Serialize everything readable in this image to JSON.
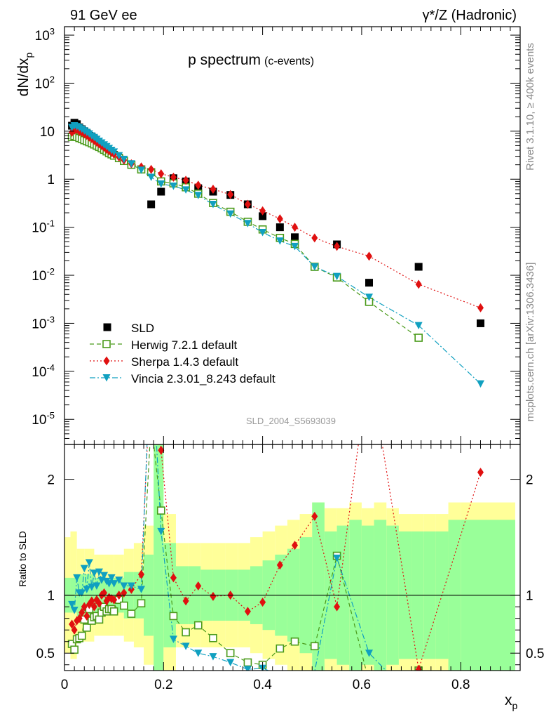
{
  "header": {
    "left_label": "91 GeV ee",
    "right_label": "γ*/Z (Hadronic)"
  },
  "side_labels": {
    "rivet": "Rivet 3.1.10, ≥ 400k events",
    "mcplots": "mcplots.cern.ch [arXiv:1306.3436]"
  },
  "chart_data": {
    "type": "scatter",
    "title": "p spectrum",
    "subtitle": "(c-events)",
    "analysis_id": "SLD_2004_S5693039",
    "xlabel": "x_p",
    "ylabel": "dN/dx_p",
    "ratio_ylabel": "Ratio to SLD",
    "xlim": [
      0,
      0.92
    ],
    "ylim_log": [
      3e-06,
      1500
    ],
    "ratio_ylim": [
      0.35,
      2.3
    ],
    "log_y": true,
    "legend_position": "bottom-left",
    "x_ticks": [
      "0",
      "0.2",
      "0.4",
      "0.6",
      "0.8"
    ],
    "y_ticks": [
      "10^-5",
      "10^-4",
      "10^-3",
      "10^-2",
      "10^-1",
      "1",
      "10",
      "10^2",
      "10^3"
    ],
    "ratio_ticks": [
      "0.5",
      "1",
      "2"
    ],
    "data": {
      "name": "SLD",
      "x": [
        0.015,
        0.02,
        0.025,
        0.03,
        0.035,
        0.04,
        0.045,
        0.05,
        0.055,
        0.06,
        0.065,
        0.07,
        0.075,
        0.08,
        0.085,
        0.09,
        0.095,
        0.1,
        0.11,
        0.12,
        0.135,
        0.155,
        0.175,
        0.195,
        0.22,
        0.245,
        0.27,
        0.3,
        0.335,
        0.37,
        0.4,
        0.435,
        0.465,
        0.505,
        0.55,
        0.615,
        0.715,
        0.84
      ],
      "y": [
        13,
        15,
        14,
        12,
        11,
        10,
        9,
        8,
        7.5,
        6.8,
        6,
        5.5,
        5,
        4.5,
        4.1,
        3.8,
        3.5,
        3.2,
        2.8,
        2.4,
        2.0,
        1.6,
        0.3,
        0.55,
        1.05,
        0.9,
        0.65,
        0.55,
        0.47,
        0.3,
        0.17,
        0.1,
        0.062,
        0.015,
        0.044,
        0.007,
        0.015,
        0.001
      ],
      "ratio_band_x": [
        0,
        0.012,
        0.025,
        0.04,
        0.06,
        0.08,
        0.1,
        0.12,
        0.14,
        0.16,
        0.18,
        0.2,
        0.225,
        0.25,
        0.275,
        0.3,
        0.325,
        0.35,
        0.375,
        0.4,
        0.425,
        0.45,
        0.475,
        0.5,
        0.525,
        0.55,
        0.575,
        0.6,
        0.625,
        0.65,
        0.675,
        0.7,
        0.725,
        0.75,
        0.775,
        0.8,
        0.91
      ],
      "ratio_band_inner": [
        0.15,
        0.15,
        0.18,
        0.18,
        0.15,
        0.15,
        0.15,
        0.2,
        0.2,
        0.35,
        1.5,
        0.45,
        0.25,
        0.25,
        0.22,
        0.22,
        0.22,
        0.22,
        0.25,
        0.3,
        0.35,
        0.4,
        0.5,
        0.8,
        0.55,
        0.6,
        0.65,
        0.6,
        0.65,
        0.6,
        0.55,
        0.55,
        0.55,
        0.55,
        0.65,
        0.65,
        0.65
      ],
      "ratio_band_outer": [
        0.5,
        0.55,
        0.4,
        0.4,
        0.35,
        0.35,
        0.35,
        0.4,
        0.45,
        0.6,
        1.5,
        0.7,
        0.45,
        0.45,
        0.45,
        0.45,
        0.45,
        0.45,
        0.5,
        0.55,
        0.6,
        0.65,
        0.7,
        0.8,
        0.75,
        0.75,
        0.8,
        0.75,
        0.8,
        0.75,
        0.7,
        0.7,
        0.7,
        0.7,
        0.8,
        0.8,
        0.8
      ]
    },
    "series": [
      {
        "name": "Herwig 7.2.1 default",
        "color": "#4a9a1a",
        "marker": "open-square",
        "dash": "6,4",
        "x": [
          0.015,
          0.02,
          0.025,
          0.03,
          0.035,
          0.04,
          0.045,
          0.05,
          0.055,
          0.06,
          0.065,
          0.07,
          0.075,
          0.08,
          0.085,
          0.09,
          0.095,
          0.1,
          0.11,
          0.12,
          0.135,
          0.155,
          0.175,
          0.195,
          0.22,
          0.245,
          0.27,
          0.3,
          0.335,
          0.37,
          0.4,
          0.435,
          0.465,
          0.505,
          0.55,
          0.615,
          0.715
        ],
        "y": [
          7.6,
          7.9,
          7.6,
          7.2,
          6.9,
          6.5,
          6.2,
          5.9,
          5.6,
          5.3,
          5.0,
          4.7,
          4.4,
          4.1,
          3.8,
          3.5,
          3.3,
          3.1,
          2.75,
          2.4,
          2.0,
          1.6,
          1.4,
          0.9,
          0.82,
          0.68,
          0.5,
          0.32,
          0.21,
          0.13,
          0.09,
          0.06,
          0.045,
          0.015,
          0.009,
          0.0028,
          0.0005
        ],
        "ratio": [
          0.58,
          0.53,
          0.62,
          0.63,
          0.65,
          0.79,
          0.72,
          0.88,
          0.78,
          0.81,
          0.82,
          0.79,
          0.85,
          0.9,
          0.86,
          0.88,
          0.88,
          0.86,
          0.96,
          0.91,
          0.84,
          0.93,
          2.5,
          1.73,
          0.82,
          0.68,
          0.74,
          0.63,
          0.5,
          0.42,
          0.4,
          0.54,
          0.6,
          0.56,
          1.34,
          0.25,
          0.35
        ]
      },
      {
        "name": "Sherpa 1.4.3 default",
        "color": "#e01010",
        "marker": "filled-diamond",
        "dash": "2,3",
        "x": [
          0.015,
          0.02,
          0.025,
          0.03,
          0.035,
          0.04,
          0.045,
          0.05,
          0.055,
          0.06,
          0.065,
          0.07,
          0.075,
          0.08,
          0.085,
          0.09,
          0.095,
          0.1,
          0.11,
          0.12,
          0.135,
          0.155,
          0.175,
          0.195,
          0.22,
          0.245,
          0.27,
          0.3,
          0.335,
          0.37,
          0.4,
          0.435,
          0.465,
          0.505,
          0.55,
          0.615,
          0.715,
          0.84
        ],
        "y": [
          9.5,
          10.5,
          10.8,
          10.0,
          9.5,
          8.8,
          8.2,
          7.5,
          7.0,
          6.4,
          5.9,
          5.4,
          5.0,
          4.6,
          4.2,
          3.9,
          3.6,
          3.3,
          2.9,
          2.5,
          2.1,
          1.8,
          1.6,
          1.3,
          1.1,
          0.95,
          0.75,
          0.62,
          0.48,
          0.3,
          0.22,
          0.15,
          0.1,
          0.06,
          0.04,
          0.025,
          0.0065,
          0.0021
        ],
        "ratio": [
          0.75,
          0.7,
          0.78,
          0.8,
          0.85,
          0.9,
          0.82,
          0.92,
          0.95,
          0.9,
          0.96,
          0.93,
          1.0,
          1.02,
          0.95,
          0.98,
          0.97,
          0.96,
          1.0,
          1.02,
          1.05,
          1.18,
          3.0,
          2.25,
          1.15,
          0.95,
          1.08,
          0.99,
          1.0,
          0.86,
          0.94,
          1.26,
          1.43,
          1.68,
          0.9,
          3.0,
          0.36,
          2.06
        ]
      },
      {
        "name": "Vincia 2.3.01_8.243 default",
        "color": "#10a0c0",
        "marker": "filled-triangle-down",
        "dash": "8,3,2,3",
        "x": [
          0.015,
          0.02,
          0.025,
          0.03,
          0.035,
          0.04,
          0.045,
          0.05,
          0.055,
          0.06,
          0.065,
          0.07,
          0.075,
          0.08,
          0.085,
          0.09,
          0.095,
          0.1,
          0.11,
          0.12,
          0.135,
          0.155,
          0.175,
          0.195,
          0.22,
          0.245,
          0.27,
          0.3,
          0.335,
          0.37,
          0.4,
          0.435,
          0.465,
          0.505,
          0.55,
          0.615,
          0.715,
          0.84
        ],
        "y": [
          12.0,
          13.0,
          12.5,
          11.8,
          11.0,
          10.2,
          9.5,
          8.8,
          8.0,
          7.4,
          6.8,
          6.2,
          5.7,
          5.2,
          4.8,
          4.4,
          4.0,
          3.7,
          3.1,
          2.6,
          2.1,
          1.55,
          1.1,
          0.8,
          0.72,
          0.6,
          0.46,
          0.3,
          0.19,
          0.12,
          0.078,
          0.052,
          0.04,
          0.015,
          0.0095,
          0.0035,
          0.0009,
          5.5e-05
        ],
        "ratio": [
          0.92,
          0.87,
          1.15,
          1.02,
          1.02,
          1.23,
          1.05,
          1.28,
          1.07,
          1.19,
          1.08,
          1.2,
          1.13,
          1.17,
          1.12,
          1.1,
          1.15,
          1.1,
          1.13,
          1.08,
          1.08,
          1.05,
          3.2,
          1.55,
          0.62,
          0.56,
          0.5,
          0.47,
          0.42,
          0.36,
          0.37,
          0.31,
          0.3,
          0.34,
          1.32,
          0.5,
          0.06,
          0.055
        ]
      }
    ]
  }
}
